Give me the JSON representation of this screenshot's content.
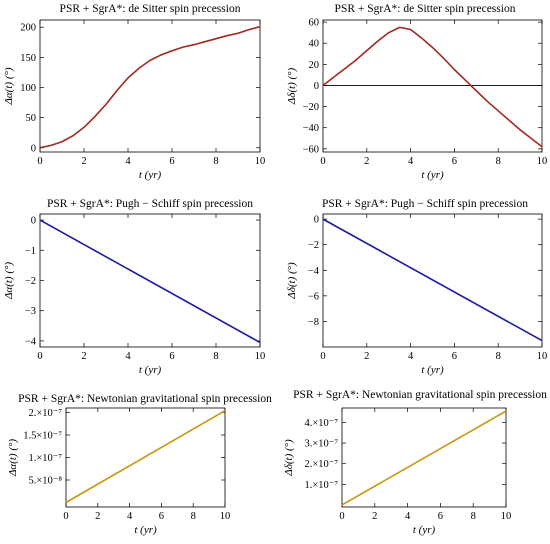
{
  "chart_data": [
    {
      "type": "line",
      "title": "PSR + SgrA*: de Sitter spin precession",
      "xlabel": "t (yr)",
      "ylabel": "Δα(t)  (°)",
      "xlim": [
        0,
        10
      ],
      "ylim": [
        -7,
        212
      ],
      "xticks": [
        0,
        2,
        4,
        6,
        8,
        10
      ],
      "yticks": [
        0,
        50,
        100,
        150,
        200
      ],
      "zero_line": false,
      "series": [
        {
          "color": "#a0281e",
          "x": [
            0,
            0.5,
            1,
            1.5,
            2,
            2.5,
            3,
            3.5,
            4,
            4.5,
            5,
            5.5,
            6,
            6.5,
            7,
            7.5,
            8,
            8.5,
            9,
            9.5,
            10
          ],
          "y": [
            0,
            4,
            10,
            20,
            34,
            52,
            72,
            95,
            116,
            132,
            145,
            154,
            161,
            167,
            171,
            176,
            181,
            186,
            190,
            196,
            201
          ]
        }
      ]
    },
    {
      "type": "line",
      "title": "PSR + SgrA*: de Sitter  spin precession",
      "xlabel": "t (yr)",
      "ylabel": "Δδ(t)  (°)",
      "xlim": [
        0,
        10
      ],
      "ylim": [
        -63,
        62
      ],
      "xticks": [
        0,
        2,
        4,
        6,
        8,
        10
      ],
      "yticks": [
        -60,
        -40,
        -20,
        0,
        20,
        40,
        60
      ],
      "zero_line": true,
      "series": [
        {
          "color": "#a0281e",
          "x": [
            0,
            0.5,
            1,
            1.5,
            2,
            2.5,
            3,
            3.5,
            4,
            4.5,
            5,
            5.5,
            6,
            6.5,
            7,
            7.5,
            8,
            8.5,
            9,
            9.5,
            10
          ],
          "y": [
            0,
            8,
            16,
            24,
            33,
            42,
            50,
            55,
            53,
            45,
            36,
            26,
            15,
            5,
            -5,
            -15,
            -24,
            -33,
            -42,
            -50,
            -58
          ]
        }
      ]
    },
    {
      "type": "line",
      "title": "PSR + SgrA*: Pugh − Schiff spin precession",
      "xlabel": "t (yr)",
      "ylabel": "Δα(t)  (°)",
      "xlim": [
        0,
        10
      ],
      "ylim": [
        -4.2,
        0.2
      ],
      "xticks": [
        0,
        2,
        4,
        6,
        8,
        10
      ],
      "yticks": [
        -4,
        -3,
        -2,
        -1,
        0
      ],
      "zero_line": false,
      "series": [
        {
          "color": "#1a1aa6",
          "x": [
            0,
            10
          ],
          "y": [
            0,
            -4.05
          ]
        }
      ]
    },
    {
      "type": "line",
      "title": "PSR + SgrA*: Pugh − Schiff spin precession",
      "xlabel": "t (yr)",
      "ylabel": "Δδ(t)  (°)",
      "xlim": [
        0,
        10
      ],
      "ylim": [
        -10,
        0.4
      ],
      "xticks": [
        0,
        2,
        4,
        6,
        8,
        10
      ],
      "yticks": [
        -8,
        -6,
        -4,
        -2,
        0
      ],
      "zero_line": false,
      "series": [
        {
          "color": "#1a1aa6",
          "x": [
            0,
            10
          ],
          "y": [
            0,
            -9.5
          ]
        }
      ]
    },
    {
      "type": "line",
      "title": "PSR + SgrA*: Newtonian gravitational spin precession",
      "xlabel": "t (yr)",
      "ylabel": "Δα(t)  (°)",
      "xlim": [
        0,
        10
      ],
      "ylim": [
        -1e-08,
        2.1e-07
      ],
      "xticks": [
        0,
        2,
        4,
        6,
        8,
        10
      ],
      "yticks": [
        5e-08,
        1e-07,
        1.5e-07,
        2e-07
      ],
      "ytick_labels": [
        "5.×10⁻⁸",
        "1.×10⁻⁷",
        "1.5×10⁻⁷",
        "2.×10⁻⁷"
      ],
      "zero_line": false,
      "series": [
        {
          "color": "#c8960c",
          "x": [
            0,
            10
          ],
          "y": [
            0,
            2.04e-07
          ]
        }
      ]
    },
    {
      "type": "line",
      "title": "PSR + SgrA*: Newtonian gravitational  spin precession",
      "xlabel": "t (yr)",
      "ylabel": "Δδ(t)  (°)",
      "xlim": [
        0,
        10
      ],
      "ylim": [
        -1e-08,
        4.7e-07
      ],
      "xticks": [
        0,
        2,
        4,
        6,
        8,
        10
      ],
      "yticks": [
        1e-07,
        2e-07,
        3e-07,
        4e-07
      ],
      "ytick_labels": [
        "1.×10⁻⁷",
        "2.×10⁻⁷",
        "3.×10⁻⁷",
        "4.×10⁻⁷"
      ],
      "zero_line": false,
      "series": [
        {
          "color": "#c8960c",
          "x": [
            0,
            10
          ],
          "y": [
            0,
            4.55e-07
          ]
        }
      ]
    }
  ]
}
